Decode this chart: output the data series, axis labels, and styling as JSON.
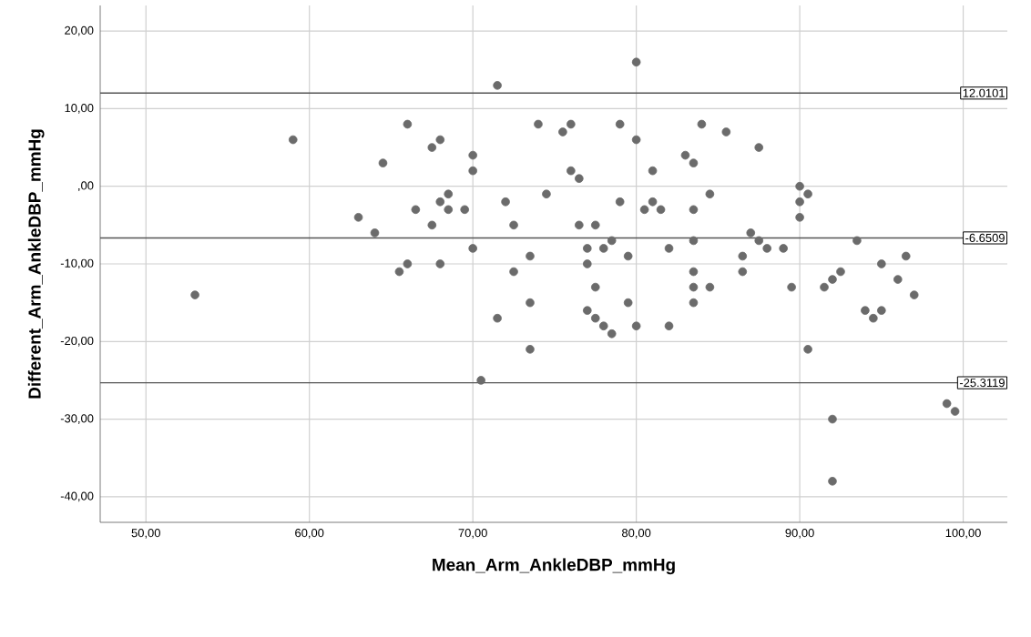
{
  "chart_data": {
    "type": "scatter",
    "xlabel": "Mean_Arm_AnkleDBP_mmHg",
    "ylabel": "Different_Arm_AnkleDBP_mmHg",
    "xlim": [
      47.2,
      102.7
    ],
    "ylim": [
      -43.3,
      23.3
    ],
    "xticks": [
      {
        "value": 50,
        "label": "50,00"
      },
      {
        "value": 60,
        "label": "60,00"
      },
      {
        "value": 70,
        "label": "70,00"
      },
      {
        "value": 80,
        "label": "80,00"
      },
      {
        "value": 90,
        "label": "90,00"
      },
      {
        "value": 100,
        "label": "100,00"
      }
    ],
    "yticks": [
      {
        "value": -40,
        "label": "-40,00"
      },
      {
        "value": -30,
        "label": "-30,00"
      },
      {
        "value": -20,
        "label": "-20,00"
      },
      {
        "value": -10,
        "label": "-10,00"
      },
      {
        "value": 0,
        "label": ",00"
      },
      {
        "value": 10,
        "label": "10,00"
      },
      {
        "value": 20,
        "label": "20,00"
      }
    ],
    "grid": true,
    "marker": "circle",
    "ref_lines": [
      {
        "axis": "y",
        "value": 12.0101,
        "label": "12.0101",
        "color": "#555555"
      },
      {
        "axis": "y",
        "value": -6.6509,
        "label": "-6.6509",
        "color": "#555555"
      },
      {
        "axis": "y",
        "value": -25.3119,
        "label": "-25.3119",
        "color": "#555555"
      }
    ],
    "series": [
      {
        "color": "#6b6b6b",
        "x": [
          53,
          59,
          63,
          64,
          64.5,
          65.5,
          66,
          66,
          66.5,
          67.5,
          67.5,
          68,
          68,
          68,
          68.5,
          68.5,
          69.5,
          70,
          70,
          70,
          70.5,
          71.5,
          71.5,
          72,
          72.5,
          72.5,
          73.5,
          73.5,
          73.5,
          74,
          74.5,
          75.5,
          76,
          76,
          76.5,
          76.5,
          77,
          77,
          77,
          77.5,
          77.5,
          77.5,
          78,
          78,
          78.5,
          78.5,
          79,
          79,
          79.5,
          79.5,
          80,
          80,
          80,
          80.5,
          81,
          81,
          81.5,
          82,
          82,
          83,
          83.5,
          83.5,
          83.5,
          83.5,
          83.5,
          83.5,
          84,
          84.5,
          84.5,
          85.5,
          87,
          86.5,
          86.5,
          87.5,
          87.5,
          88,
          89,
          89.5,
          90,
          90,
          90,
          90.5,
          90.5,
          91.5,
          92,
          92.5,
          92,
          92,
          93.5,
          94,
          94.5,
          95,
          95,
          96,
          96.5,
          97,
          99,
          99.5
        ],
        "values": [
          -14,
          6,
          -4,
          -6,
          3,
          -11,
          8,
          -10,
          -3,
          5,
          -5,
          6,
          -2,
          -10,
          -1,
          -3,
          -3,
          4,
          2,
          -8,
          -25,
          13,
          -17,
          -2,
          -5,
          -11,
          -9,
          -15,
          -21,
          8,
          -1,
          7,
          8,
          2,
          1,
          -5,
          -8,
          -10,
          -16,
          -5,
          -13,
          -17,
          -8,
          -18,
          -7,
          -19,
          8,
          -2,
          -9,
          -15,
          16,
          6,
          -18,
          -3,
          2,
          -2,
          -3,
          -8,
          -18,
          4,
          3,
          -3,
          -7,
          -11,
          -13,
          -15,
          8,
          -1,
          -13,
          7,
          -6,
          -9,
          -11,
          5,
          -7,
          -8,
          -8,
          -13,
          0,
          -2,
          -4,
          -1,
          -21,
          -13,
          -12,
          -11,
          -30,
          -38,
          -7,
          -16,
          -17,
          -10,
          -16,
          -12,
          -9,
          -14,
          -28,
          -29
        ]
      }
    ]
  }
}
